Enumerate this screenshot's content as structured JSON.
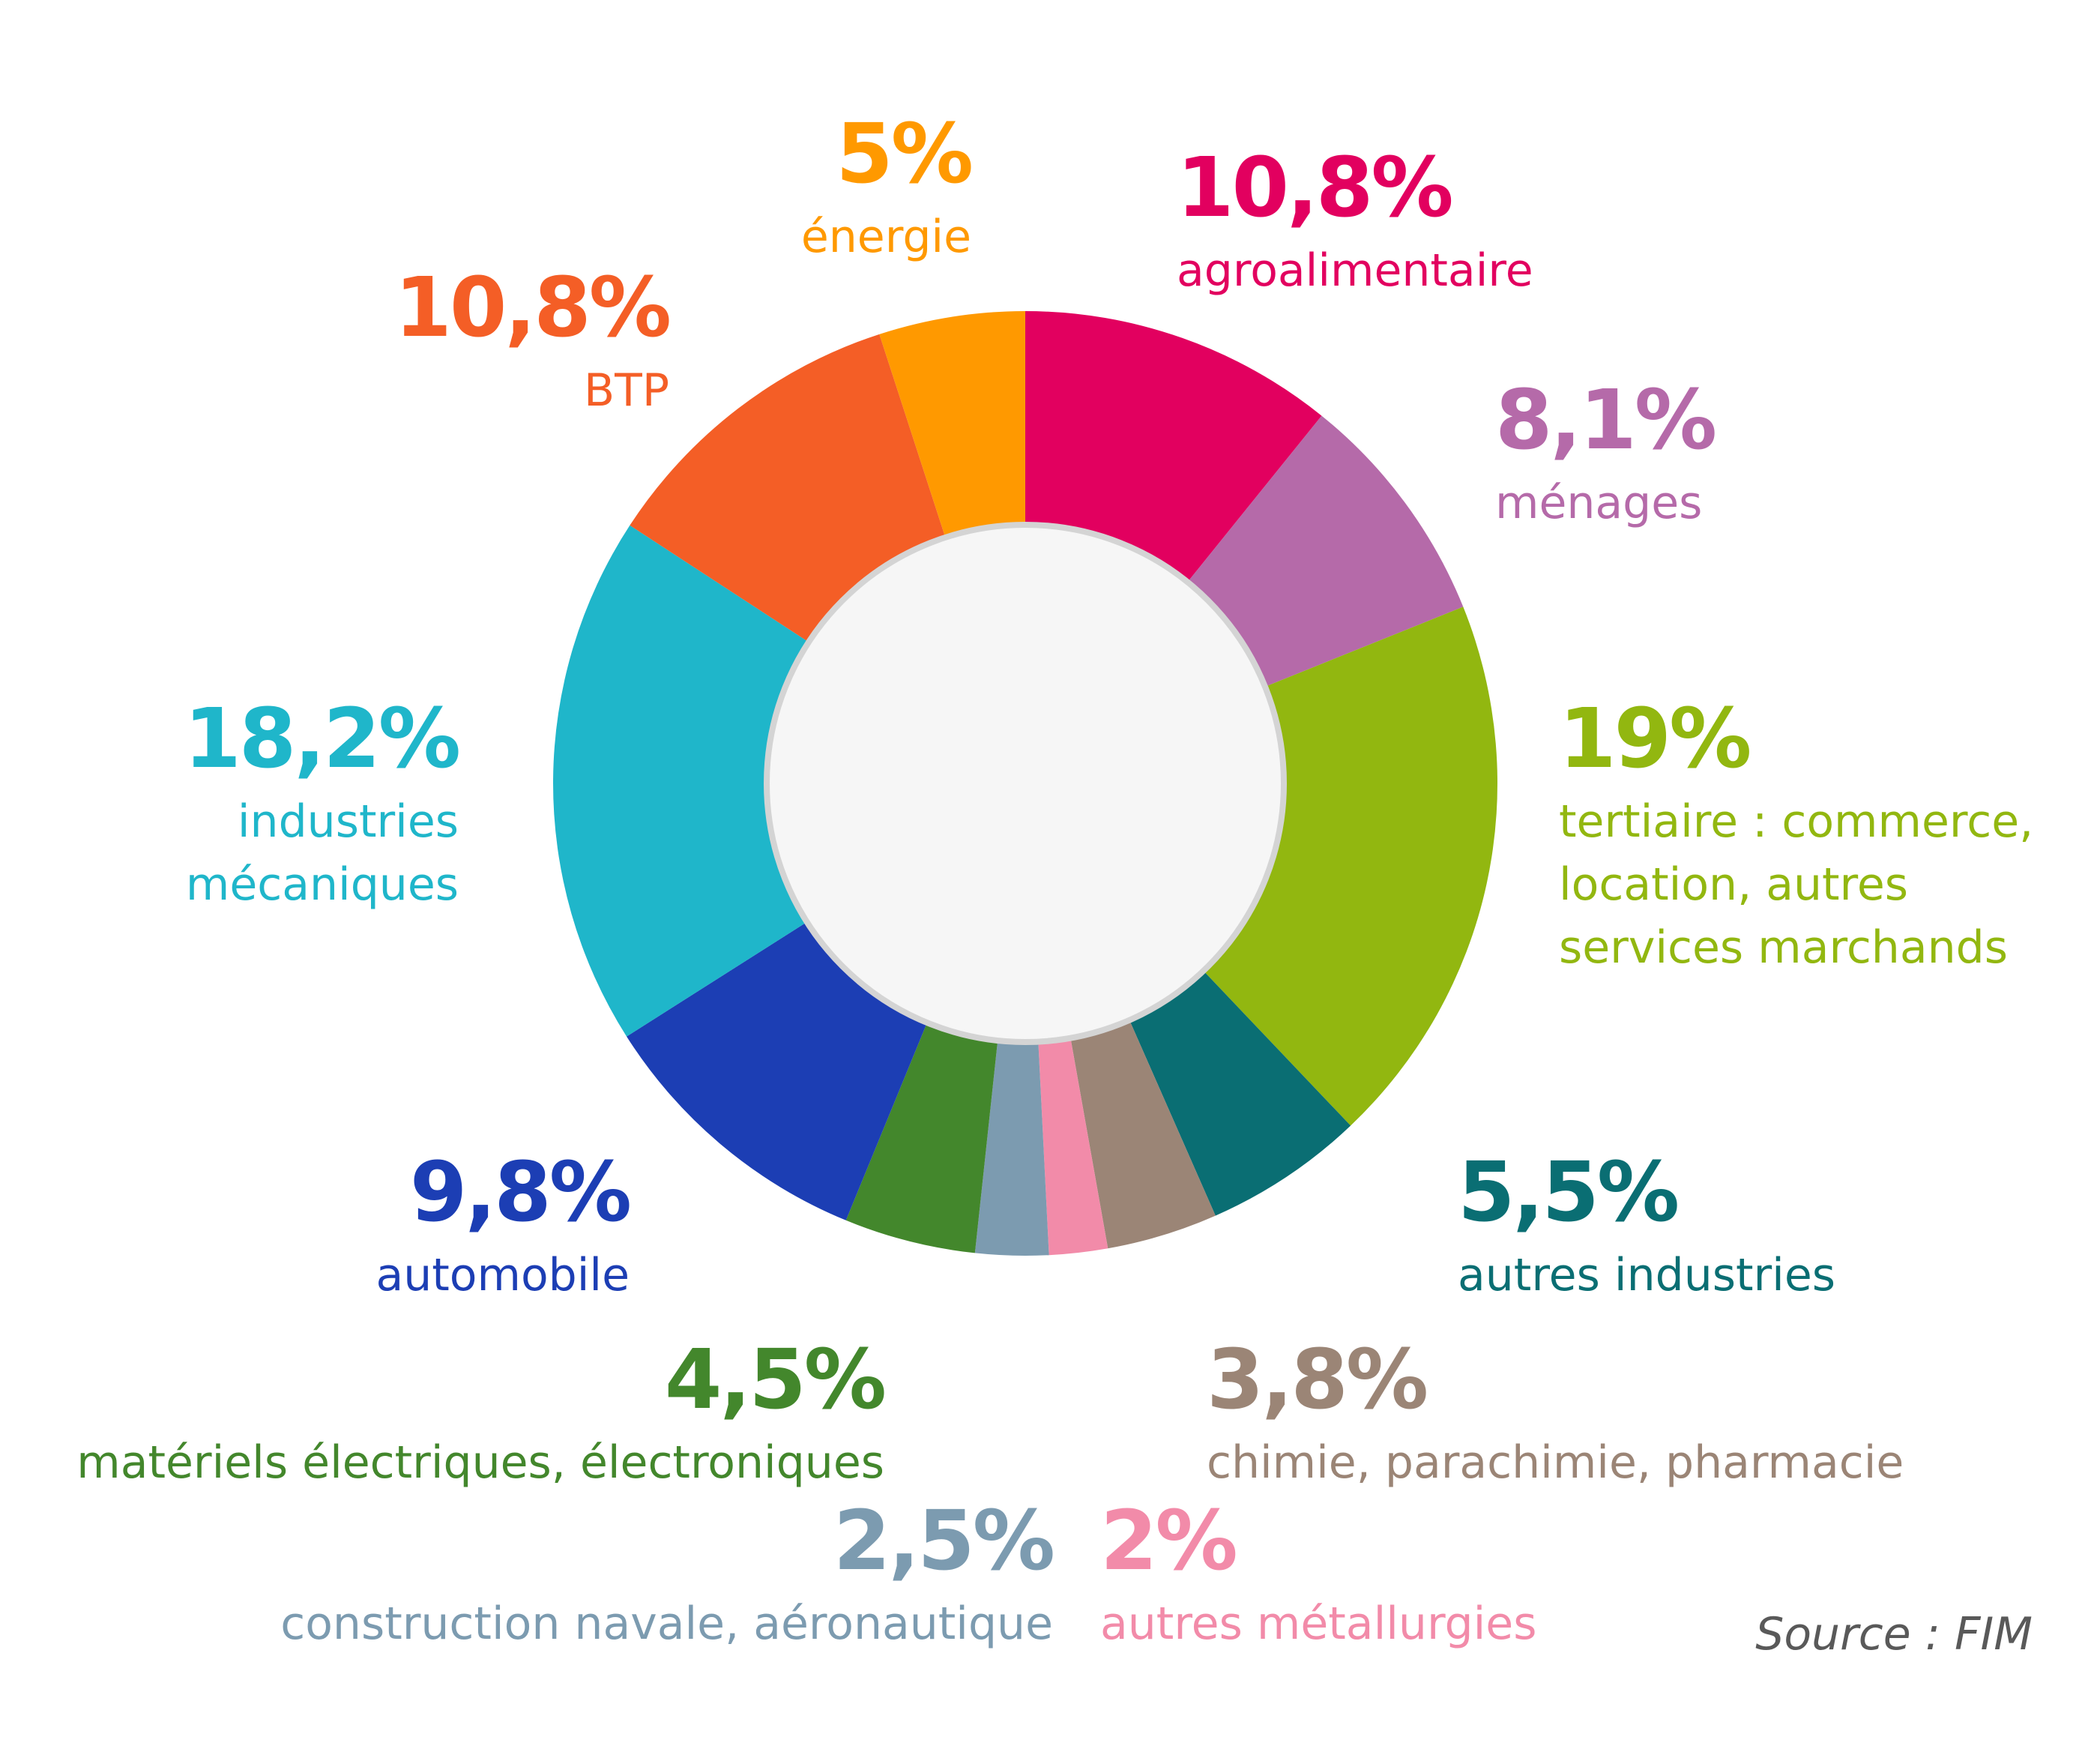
{
  "chart_data": {
    "type": "pie",
    "variant": "donut",
    "slices": [
      {
        "label": "agroalimentaire",
        "value": 10.8,
        "value_label": "10,8%",
        "color": "#E2005F"
      },
      {
        "label": "ménages",
        "value": 8.1,
        "value_label": "8,1%",
        "color": "#B56AA9"
      },
      {
        "label": "tertiaire : commerce,\nlocation, autres\nservices marchands",
        "value": 19,
        "value_label": "19%",
        "color": "#92B710"
      },
      {
        "label": "autres industries",
        "value": 5.5,
        "value_label": "5,5%",
        "color": "#0A6E73"
      },
      {
        "label": "chimie, parachimie, pharmacie",
        "value": 3.8,
        "value_label": "3,8%",
        "color": "#9B8576"
      },
      {
        "label": "autres métallurgies",
        "value": 2,
        "value_label": "2%",
        "color": "#F28BA9"
      },
      {
        "label": "construction navale, aéronautique",
        "value": 2.5,
        "value_label": "2,5%",
        "color": "#7C9BB0"
      },
      {
        "label": "matériels électriques, électroniques",
        "value": 4.5,
        "value_label": "4,5%",
        "color": "#43872C"
      },
      {
        "label": "automobile",
        "value": 9.8,
        "value_label": "9,8%",
        "color": "#1C3EB4"
      },
      {
        "label": "industries\nmécaniques",
        "value": 18.2,
        "value_label": "18,2%",
        "color": "#1FB6CA"
      },
      {
        "label": "BTP",
        "value": 10.8,
        "value_label": "10,8%",
        "color": "#F45E26"
      },
      {
        "label": "énergie",
        "value": 5,
        "value_label": "5%",
        "color": "#FF9900"
      }
    ],
    "center_color": "#F6F6F6",
    "source": "Source : FIM"
  }
}
